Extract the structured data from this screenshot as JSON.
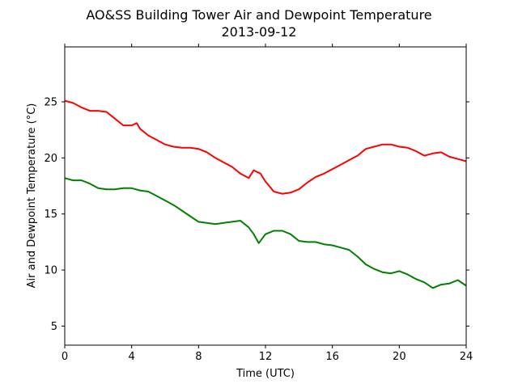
{
  "chart_data": {
    "type": "line",
    "title": "AO&SS Building Tower Air and Dewpoint Temperature",
    "subtitle": "2013-09-12",
    "xlabel": "Time (UTC)",
    "ylabel": "Air and Dewpoint Temperature (°C)",
    "xlim": [
      0,
      24
    ],
    "ylim": [
      3.3,
      29.9
    ],
    "xticks": [
      0,
      4,
      8,
      12,
      16,
      20,
      24
    ],
    "yticks": [
      5,
      10,
      15,
      20,
      25
    ],
    "grid": false,
    "legend": "none",
    "series": [
      {
        "color": "#ff0000",
        "x": [
          0.0,
          0.5,
          1.0,
          1.5,
          2.0,
          2.5,
          3.0,
          3.5,
          4.0,
          4.3,
          4.5,
          5.0,
          5.5,
          6.0,
          6.5,
          7.0,
          7.5,
          8.0,
          8.5,
          9.0,
          9.5,
          10.0,
          10.5,
          11.0,
          11.3,
          11.7,
          12.0,
          12.5,
          13.0,
          13.5,
          14.0,
          14.5,
          15.0,
          15.5,
          16.0,
          16.5,
          17.0,
          17.5,
          18.0,
          18.5,
          19.0,
          19.5,
          20.0,
          20.5,
          21.0,
          21.5,
          22.0,
          22.5,
          23.0,
          23.5,
          24.0
        ],
        "values": [
          25.1,
          24.9,
          24.5,
          24.2,
          24.2,
          24.1,
          23.5,
          22.9,
          22.9,
          23.1,
          22.6,
          22.0,
          21.6,
          21.2,
          21.0,
          20.9,
          20.9,
          20.8,
          20.5,
          20.0,
          19.6,
          19.2,
          18.6,
          18.2,
          18.9,
          18.6,
          17.9,
          17.0,
          16.8,
          16.9,
          17.2,
          17.8,
          18.3,
          18.6,
          19.0,
          19.4,
          19.8,
          20.2,
          20.8,
          21.0,
          21.2,
          21.2,
          21.0,
          20.9,
          20.6,
          20.2,
          20.4,
          20.5,
          20.1,
          19.9,
          19.7
        ]
      },
      {
        "color": "#008000",
        "x": [
          0.0,
          0.5,
          1.0,
          1.5,
          2.0,
          2.5,
          3.0,
          3.5,
          4.0,
          4.5,
          5.0,
          5.5,
          6.0,
          6.5,
          7.0,
          7.5,
          8.0,
          8.5,
          9.0,
          9.5,
          10.0,
          10.5,
          11.0,
          11.3,
          11.6,
          12.0,
          12.5,
          13.0,
          13.5,
          14.0,
          14.5,
          15.0,
          15.5,
          16.0,
          16.5,
          17.0,
          17.5,
          18.0,
          18.5,
          19.0,
          19.5,
          20.0,
          20.5,
          21.0,
          21.5,
          22.0,
          22.5,
          23.0,
          23.5,
          24.0
        ],
        "values": [
          18.2,
          18.0,
          18.0,
          17.7,
          17.3,
          17.2,
          17.2,
          17.3,
          17.3,
          17.1,
          17.0,
          16.6,
          16.2,
          15.8,
          15.3,
          14.8,
          14.3,
          14.2,
          14.1,
          14.2,
          14.3,
          14.4,
          13.8,
          13.2,
          12.4,
          13.2,
          13.5,
          13.5,
          13.2,
          12.6,
          12.5,
          12.5,
          12.3,
          12.2,
          12.0,
          11.8,
          11.2,
          10.5,
          10.1,
          9.8,
          9.7,
          9.9,
          9.6,
          9.2,
          8.9,
          8.4,
          8.7,
          8.8,
          9.1,
          8.6
        ]
      }
    ]
  }
}
